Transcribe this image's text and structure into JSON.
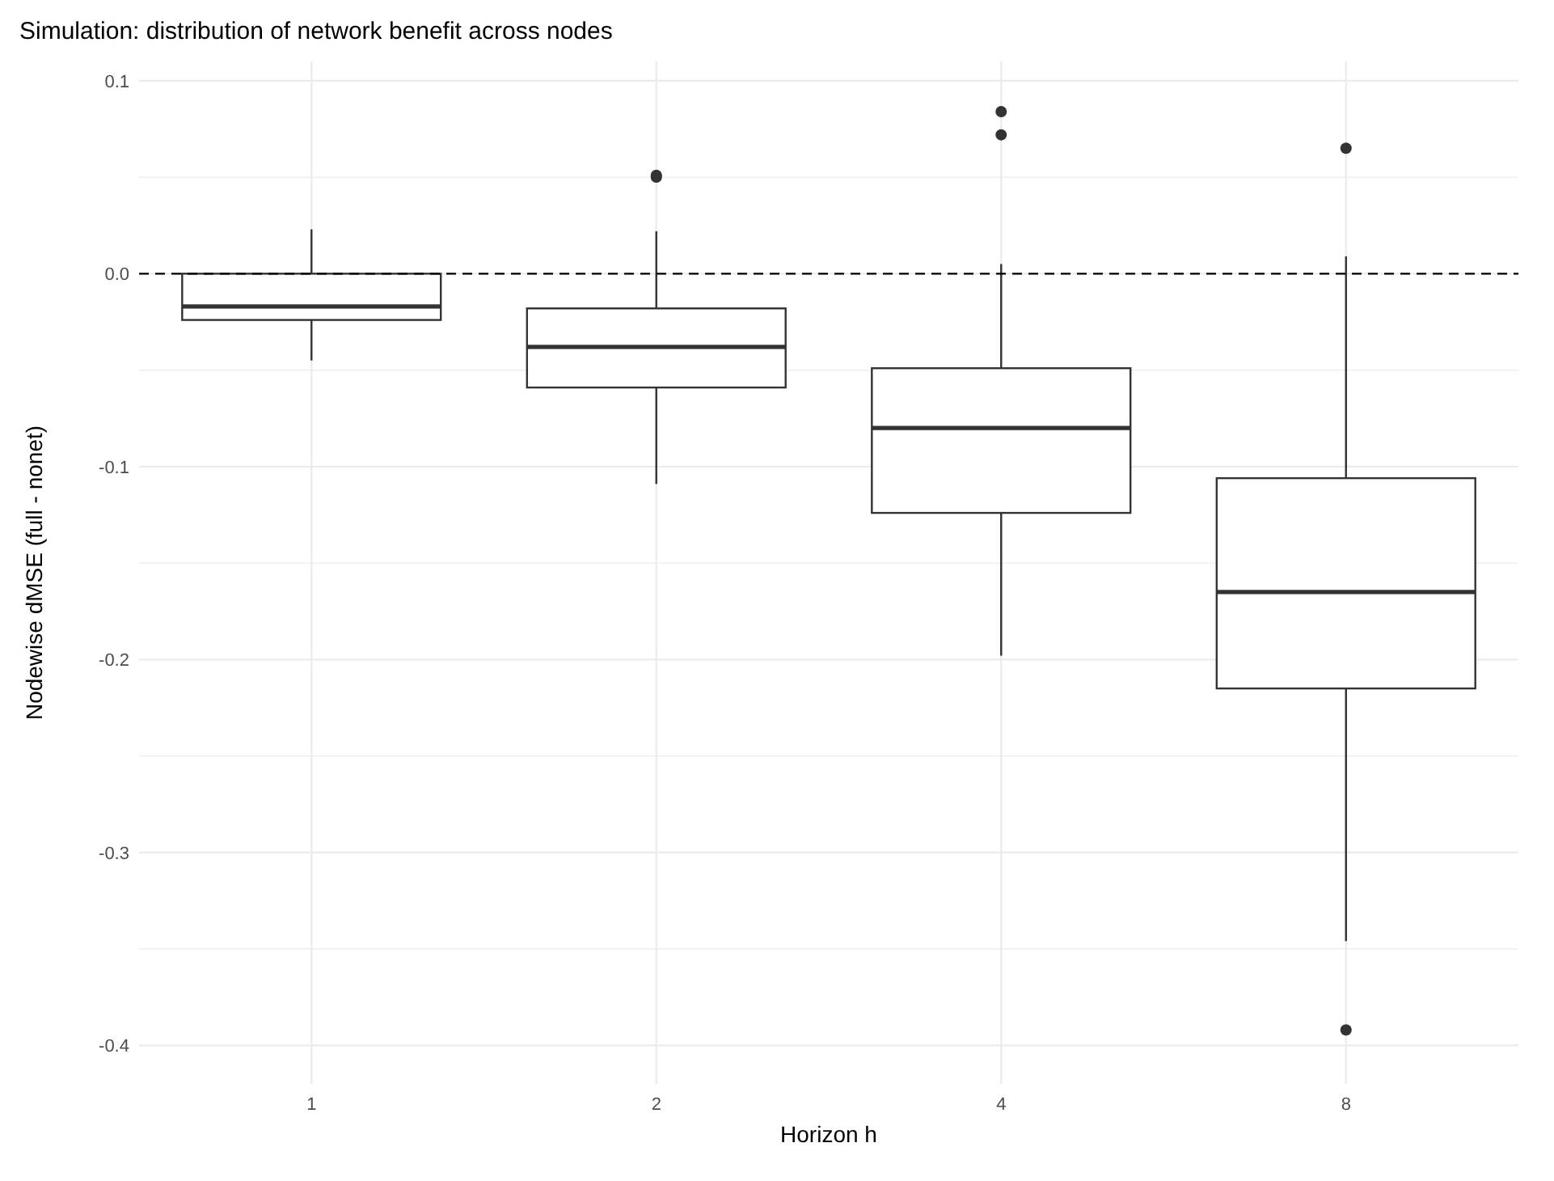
{
  "chart_data": {
    "type": "box",
    "title": "Simulation: distribution of network benefit across nodes",
    "xlabel": "Horizon h",
    "ylabel": "Nodewise dMSE (full - nonet)",
    "categories": [
      "1",
      "2",
      "4",
      "8"
    ],
    "boxes": [
      {
        "low": -0.045,
        "q1": -0.024,
        "median": -0.017,
        "q3": 0.0,
        "high": 0.023
      },
      {
        "low": -0.109,
        "q1": -0.059,
        "median": -0.038,
        "q3": -0.018,
        "high": 0.022,
        "outliers": [
          0.05,
          0.051
        ]
      },
      {
        "low": -0.198,
        "q1": -0.124,
        "median": -0.08,
        "q3": -0.049,
        "high": 0.005,
        "outliers": [
          0.072,
          0.084
        ]
      },
      {
        "low": -0.346,
        "q1": -0.215,
        "median": -0.165,
        "q3": -0.106,
        "high": 0.009,
        "outliers": [
          0.065,
          -0.392
        ]
      }
    ],
    "ylim": [
      -0.42,
      0.11
    ],
    "yticks": [
      {
        "value": -0.4,
        "label": "-0.4"
      },
      {
        "value": -0.35,
        "label": null
      },
      {
        "value": -0.3,
        "label": "-0.3"
      },
      {
        "value": -0.25,
        "label": null
      },
      {
        "value": -0.2,
        "label": "-0.2"
      },
      {
        "value": -0.15,
        "label": null
      },
      {
        "value": -0.1,
        "label": "-0.1"
      },
      {
        "value": -0.05,
        "label": null
      },
      {
        "value": 0,
        "label": "0.0"
      },
      {
        "value": 0.05,
        "label": null
      },
      {
        "value": 0.1,
        "label": "0.1"
      }
    ],
    "ref_lines": [
      {
        "axis": "y",
        "value": 0,
        "line_style": "dashed",
        "color": "#000000"
      }
    ],
    "grid": true,
    "color": "#333333"
  }
}
